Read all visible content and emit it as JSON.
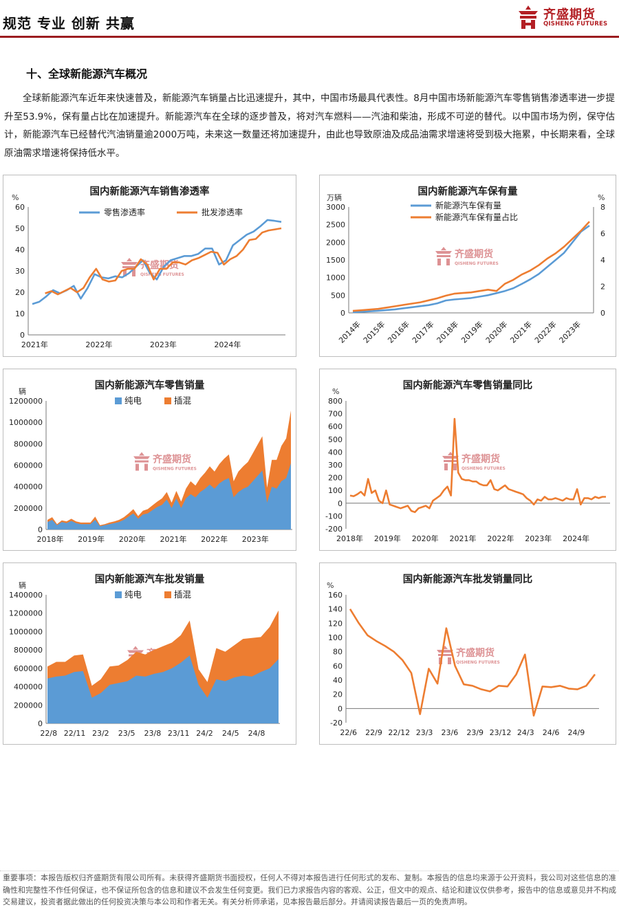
{
  "header": {
    "slogan": "规范 专业 创新 共赢",
    "logo_cn": "齐盛期货",
    "logo_en": "QISHENG FUTURES",
    "accent": "#9b1c1f"
  },
  "section_title": "十、全球新能源汽车概况",
  "paragraph": "全球新能源汽车近年来快速普及，新能源汽车销量占比迅速提升，其中，中国市场最具代表性。8月中国市场新能源汽车零售销售渗透率进一步提升至53.9%，保有量占比在加速提升。新能源汽车在全球的逐步普及，将对汽车燃料——汽油和柴油，形成不可逆的替代。以中国市场为例，保守估计，新能源汽车已经替代汽油销量逾2000万吨，未来这一数量还将加速提升，由此也导致原油及成品油需求增速将受到极大拖累，中长期来看，全球原油需求增速将保持低水平。",
  "watermark": {
    "cn": "齐盛期货",
    "en": "QISHENG FUTURES"
  },
  "colors": {
    "blue": "#5b9bd5",
    "orange": "#ed7d31"
  },
  "chart_data": [
    {
      "id": "penetration",
      "type": "line",
      "title": "国内新能源汽车销售渗透率",
      "ylabel": "%",
      "ylim": [
        0,
        60
      ],
      "yticks": [
        0,
        10,
        20,
        30,
        40,
        50,
        60
      ],
      "xticks": [
        "2021年",
        "2022年",
        "2023年",
        "2024年"
      ],
      "legend": "top-left",
      "series": [
        {
          "name": "零售渗透率",
          "color": "#5b9bd5",
          "values": [
            14.5,
            15.5,
            18,
            21,
            19.5,
            21,
            23,
            17,
            22,
            28.5,
            27,
            26.5,
            27.5,
            27,
            29,
            32,
            35,
            29,
            26,
            32,
            35,
            36,
            37,
            37,
            38,
            40.5,
            40.5,
            33,
            35,
            42,
            44.5,
            47,
            48.5,
            51,
            53.9,
            53.5,
            53
          ]
        },
        {
          "name": "批发渗透率",
          "color": "#ed7d31",
          "values": [
            null,
            null,
            19.5,
            20.5,
            19,
            20.5,
            22,
            20,
            22,
            27,
            31,
            26,
            25,
            25.5,
            30,
            31,
            31,
            35.5,
            33,
            26,
            31,
            31,
            34,
            34,
            33,
            35,
            36,
            37.5,
            39,
            38.5,
            33,
            35.5,
            37,
            40,
            44.5,
            45,
            48,
            49,
            49.5,
            50
          ]
        }
      ]
    },
    {
      "id": "ownership",
      "type": "line",
      "title": "国内新能源汽车保有量",
      "ylabel": "万辆",
      "y2label": "%",
      "ylim": [
        0,
        3000
      ],
      "yticks": [
        0,
        500,
        1000,
        1500,
        2000,
        2500,
        3000
      ],
      "y2lim": [
        0,
        8
      ],
      "y2ticks": [
        0,
        2,
        4,
        6,
        8
      ],
      "xticks": [
        "2014年",
        "2015年",
        "2016年",
        "2017年",
        "2018年",
        "2019年",
        "2020年",
        "2021年",
        "2022年",
        "2023年"
      ],
      "legend": "top-left",
      "series": [
        {
          "name": "新能源汽车保有量",
          "color": "#5b9bd5",
          "axis": "left",
          "values": [
            20,
            30,
            45,
            60,
            80,
            100,
            130,
            160,
            190,
            220,
            270,
            350,
            380,
            400,
            420,
            460,
            500,
            560,
            620,
            700,
            820,
            950,
            1100,
            1300,
            1500,
            1700,
            2000,
            2300,
            2472
          ]
        },
        {
          "name": "新能源汽车保有量占比",
          "color": "#ed7d31",
          "axis": "right",
          "values": [
            0.15,
            0.2,
            0.25,
            0.3,
            0.4,
            0.5,
            0.6,
            0.7,
            0.8,
            0.95,
            1.1,
            1.3,
            1.45,
            1.5,
            1.55,
            1.65,
            1.75,
            1.65,
            2.2,
            2.5,
            2.9,
            3.2,
            3.6,
            4.1,
            4.5,
            5.0,
            5.6,
            6.2,
            6.9
          ]
        }
      ]
    },
    {
      "id": "retail",
      "type": "area",
      "title": "国内新能源汽车零售销量",
      "ylabel": "辆",
      "ylim": [
        0,
        1200000
      ],
      "yticks": [
        0,
        200000,
        400000,
        600000,
        800000,
        1000000,
        1200000
      ],
      "xticks": [
        "2018年",
        "2019年",
        "2020年",
        "2021年",
        "2022年",
        "2023年"
      ],
      "legend": "top-center",
      "series": [
        {
          "name": "纯电",
          "color": "#5b9bd5",
          "values": [
            70000,
            90000,
            40000,
            70000,
            60000,
            80000,
            60000,
            50000,
            50000,
            50000,
            90000,
            30000,
            40000,
            50000,
            60000,
            70000,
            90000,
            120000,
            150000,
            100000,
            140000,
            150000,
            180000,
            210000,
            230000,
            280000,
            200000,
            290000,
            200000,
            290000,
            330000,
            300000,
            350000,
            380000,
            420000,
            380000,
            430000,
            460000,
            480000,
            300000,
            350000,
            380000,
            400000,
            450000,
            500000,
            550000,
            250000,
            400000,
            380000,
            450000,
            480000,
            620000
          ]
        },
        {
          "name": "插混",
          "color": "#ed7d31",
          "values": [
            20000,
            25000,
            10000,
            15000,
            15000,
            20000,
            15000,
            15000,
            15000,
            15000,
            30000,
            10000,
            10000,
            15000,
            15000,
            20000,
            25000,
            30000,
            40000,
            25000,
            35000,
            40000,
            45000,
            50000,
            60000,
            70000,
            50000,
            70000,
            60000,
            90000,
            120000,
            110000,
            130000,
            150000,
            170000,
            160000,
            180000,
            200000,
            220000,
            150000,
            190000,
            210000,
            230000,
            260000,
            290000,
            320000,
            140000,
            250000,
            270000,
            330000,
            370000,
            490000
          ]
        }
      ]
    },
    {
      "id": "retail_yoy",
      "type": "line",
      "title": "国内新能源汽车零售销量同比",
      "ylabel": "%",
      "ylim": [
        -200,
        800
      ],
      "yticks": [
        -200,
        -100,
        0,
        100,
        200,
        300,
        400,
        500,
        600,
        700,
        800
      ],
      "xticks": [
        "2018年",
        "2019年",
        "2020年",
        "2021年",
        "2022年",
        "2023年",
        "2024年"
      ],
      "series": [
        {
          "name": "",
          "color": "#ed7d31",
          "values": [
            60,
            55,
            70,
            90,
            60,
            190,
            80,
            100,
            20,
            0,
            100,
            -10,
            -20,
            -30,
            -40,
            -30,
            -20,
            -60,
            -70,
            -40,
            -30,
            -20,
            -40,
            20,
            40,
            60,
            100,
            130,
            60,
            660,
            240,
            190,
            180,
            180,
            170,
            170,
            150,
            140,
            140,
            180,
            110,
            100,
            120,
            140,
            110,
            100,
            90,
            80,
            70,
            40,
            20,
            -10,
            30,
            20,
            50,
            30,
            30,
            40,
            30,
            20,
            40,
            30,
            30,
            110,
            -10,
            40,
            40,
            30,
            50,
            40,
            50,
            50
          ]
        }
      ]
    },
    {
      "id": "wholesale",
      "type": "area",
      "title": "国内新能源汽车批发销量",
      "ylabel": "辆",
      "ylim": [
        0,
        1400000
      ],
      "yticks": [
        0,
        200000,
        400000,
        600000,
        800000,
        1000000,
        1200000,
        1400000
      ],
      "xticks": [
        "22/8",
        "22/11",
        "23/2",
        "23/5",
        "23/8",
        "23/11",
        "24/2",
        "24/5",
        "24/8"
      ],
      "legend": "top-center",
      "series": [
        {
          "name": "纯电",
          "color": "#5b9bd5",
          "values": [
            490000,
            510000,
            520000,
            560000,
            570000,
            280000,
            330000,
            420000,
            440000,
            460000,
            520000,
            510000,
            540000,
            560000,
            600000,
            660000,
            740000,
            420000,
            280000,
            480000,
            460000,
            500000,
            520000,
            510000,
            560000,
            600000,
            700000
          ]
        },
        {
          "name": "插混",
          "color": "#ed7d31",
          "values": [
            130000,
            160000,
            150000,
            180000,
            180000,
            130000,
            150000,
            200000,
            190000,
            230000,
            260000,
            240000,
            260000,
            280000,
            280000,
            300000,
            380000,
            170000,
            170000,
            340000,
            320000,
            350000,
            400000,
            420000,
            380000,
            450000,
            530000
          ]
        }
      ]
    },
    {
      "id": "wholesale_yoy",
      "type": "line",
      "title": "国内新能源汽车批发销量同比",
      "ylabel": "%",
      "ylim": [
        -20,
        160
      ],
      "yticks": [
        -20,
        0,
        20,
        40,
        60,
        80,
        100,
        120,
        140,
        160
      ],
      "xticks": [
        "22/6",
        "22/9",
        "22/12",
        "23/3",
        "23/6",
        "23/9",
        "23/12",
        "24/3",
        "24/6",
        "24/9"
      ],
      "series": [
        {
          "name": "",
          "color": "#ed7d31",
          "values": [
            140,
            120,
            103,
            95,
            88,
            80,
            68,
            50,
            -8,
            56,
            35,
            113,
            60,
            34,
            32,
            27,
            24,
            32,
            31,
            48,
            76,
            -10,
            31,
            30,
            32,
            28,
            27,
            32,
            48
          ]
        }
      ]
    }
  ],
  "footer": "重要事项：本报告版权归齐盛期货有限公司所有。未获得齐盛期货书面授权，任何人不得对本报告进行任何形式的发布、复制。本报告的信息均来源于公开资料，我公司对这些信息的准确性和完整性不作任何保证，也不保证所包含的信息和建议不会发生任何变更。我们已力求报告内容的客观、公正，但文中的观点、结论和建议仅供参考，报告中的信息或意见并不构成交易建议，投资者据此做出的任何投资决策与本公司和作者无关。有关分析师承诺，见本报告最后部分。并请阅读报告最后一页的免责声明。"
}
